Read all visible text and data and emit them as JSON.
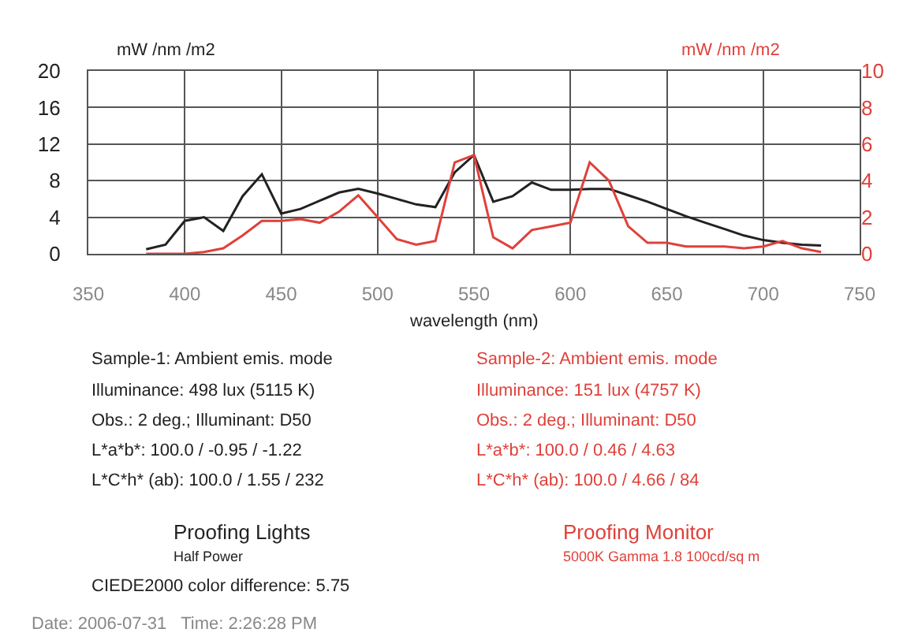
{
  "chart_data": {
    "type": "line",
    "xlabel": "wavelength (nm)",
    "ylabel": "mW /nm /m2",
    "y2label": "mW /nm /m2",
    "x": [
      380,
      390,
      400,
      410,
      420,
      430,
      440,
      450,
      460,
      470,
      480,
      490,
      500,
      510,
      520,
      530,
      540,
      550,
      560,
      570,
      580,
      590,
      600,
      610,
      620,
      630,
      640,
      650,
      660,
      670,
      680,
      690,
      700,
      710,
      720,
      730
    ],
    "series": [
      {
        "color": "#222222",
        "values": [
          0.5,
          1.0,
          3.6,
          4.0,
          2.5,
          6.3,
          8.7,
          4.4,
          4.9,
          5.8,
          6.7,
          7.1,
          6.6,
          6.0,
          5.4,
          5.1,
          8.9,
          10.8,
          5.7,
          6.3,
          7.8,
          7.0,
          7.0,
          7.1,
          7.1,
          6.4,
          5.7,
          4.9,
          4.1,
          3.4,
          2.7,
          2.0,
          1.5,
          1.2,
          1.0,
          0.9
        ]
      },
      {
        "color": "#e0403a",
        "axis": "y2",
        "values": [
          0.0,
          0.0,
          0.0,
          0.1,
          0.3,
          1.0,
          1.8,
          1.8,
          1.9,
          1.7,
          2.3,
          3.2,
          2.0,
          0.8,
          0.5,
          0.7,
          5.0,
          5.4,
          0.9,
          0.3,
          1.3,
          1.5,
          1.7,
          5.0,
          4.0,
          1.5,
          0.6,
          0.6,
          0.4,
          0.4,
          0.4,
          0.3,
          0.4,
          0.7,
          0.3,
          0.1
        ]
      }
    ],
    "xlim": [
      350,
      750
    ],
    "xticks": [
      350,
      400,
      450,
      500,
      550,
      600,
      650,
      700,
      750
    ],
    "ylim": [
      0,
      20
    ],
    "yticks": [
      0,
      4,
      8,
      12,
      16,
      20
    ],
    "y2lim": [
      0,
      10
    ],
    "y2ticks": [
      0,
      2,
      4,
      6,
      8,
      10
    ],
    "grid": true,
    "marker": "none",
    "line_style": "solid",
    "annotations": [
      "Sample-1: Ambient emis. mode",
      "Illuminance: 498 lux (5115 K)",
      "Obs.: 2 deg.; Illuminant: D50",
      "L*a*b*: 100.0 / -0.95 / -1.22",
      "L*C*h* (ab): 100.0 / 1.55 / 232",
      "Sample-2: Ambient emis. mode",
      "Illuminance: 151 lux (4757 K)",
      "Obs.: 2 deg.; Illuminant: D50",
      "L*a*b*: 100.0 / 0.46 / 4.63",
      "L*C*h* (ab): 100.0 / 4.66 / 84",
      "Proofing Lights",
      "Half Power",
      "Proofing Monitor",
      "5000K Gamma 1.8 100cd/sq m",
      "CIEDE2000 color difference: 5.75",
      "Date: 2006-07-31   Time: 2:26:28 PM"
    ]
  }
}
